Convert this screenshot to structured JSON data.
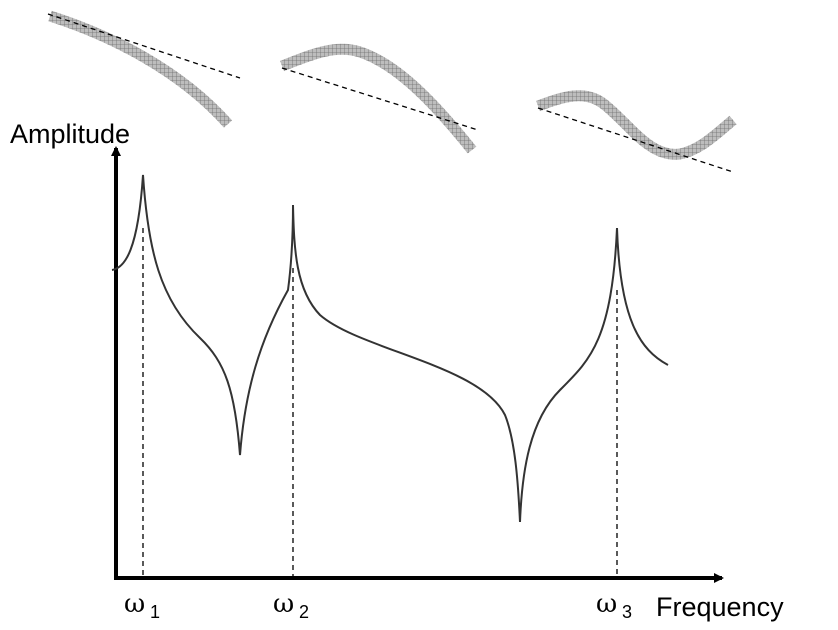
{
  "axes": {
    "y_label": "Amplitude",
    "x_label": "Frequency"
  },
  "modes": [
    {
      "symbol": "ω",
      "index": "1"
    },
    {
      "symbol": "ω",
      "index": "2"
    },
    {
      "symbol": "ω",
      "index": "3"
    }
  ]
}
